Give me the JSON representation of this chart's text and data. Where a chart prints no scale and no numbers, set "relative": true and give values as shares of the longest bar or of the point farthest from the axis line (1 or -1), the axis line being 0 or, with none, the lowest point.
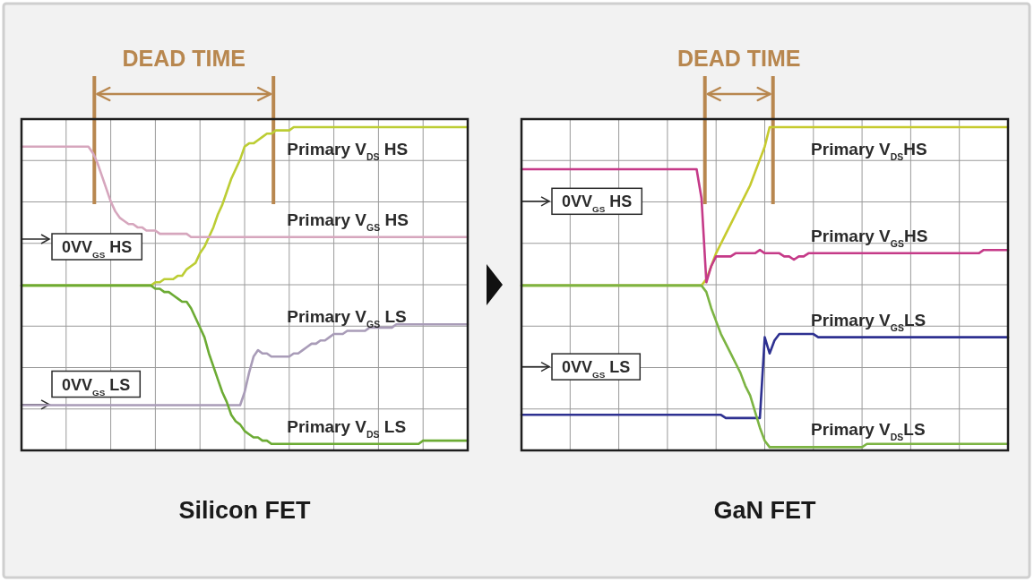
{
  "chart_data": [
    {
      "type": "line",
      "title": "Silicon FET",
      "relative": true,
      "grid": true,
      "categories": [
        null,
        null,
        null,
        null,
        null,
        null,
        null,
        null,
        null,
        null,
        null,
        null,
        null,
        null,
        null,
        null,
        null,
        null,
        null,
        null,
        null,
        null,
        null,
        null,
        null,
        null,
        null,
        null,
        null,
        null,
        null,
        null,
        null,
        null,
        null,
        null,
        null,
        null,
        null,
        null,
        null,
        null,
        null,
        null,
        null,
        null,
        null,
        null,
        null,
        null,
        null,
        null,
        null,
        null,
        null,
        null,
        null,
        null,
        null,
        null,
        null,
        null,
        null,
        null,
        null,
        null,
        null,
        null,
        null,
        null,
        null,
        null,
        null,
        null,
        null,
        null,
        null,
        null,
        null,
        null,
        null,
        null,
        null,
        null,
        null,
        null,
        null,
        null,
        null,
        null,
        null,
        null,
        null,
        null,
        null,
        null,
        null,
        null,
        null,
        null,
        null
      ],
      "series": [
        {
          "name": "Primary V$_{DS}$ HS",
          "color": "#bccd34",
          "values": [
            0.51,
            0.51,
            0.51,
            0.51,
            0.51,
            0.51,
            0.51,
            0.51,
            0.51,
            0.51,
            0.51,
            0.51,
            0.51,
            0.51,
            0.51,
            0.51,
            0.51,
            0.51,
            0.51,
            0.51,
            0.51,
            0.51,
            0.51,
            0.51,
            0.51,
            0.51,
            0.51,
            0.51,
            0.51,
            0.51,
            0.52,
            0.52,
            0.53,
            0.53,
            0.53,
            0.54,
            0.54,
            0.56,
            0.57,
            0.58,
            0.61,
            0.63,
            0.66,
            0.69,
            0.73,
            0.76,
            0.8,
            0.84,
            0.87,
            0.9,
            0.94,
            0.95,
            0.95,
            0.96,
            0.97,
            0.98,
            0.98,
            0.99,
            0.99,
            0.99,
            0.99,
            1,
            1,
            1,
            1,
            1,
            1,
            1,
            1,
            1,
            1,
            1,
            1,
            1,
            1,
            1,
            1,
            1,
            1,
            1,
            1,
            1,
            1,
            1,
            1,
            1,
            1,
            1,
            1,
            1,
            1,
            1,
            1,
            1,
            1,
            1,
            1,
            1,
            1,
            1,
            1
          ]
        },
        {
          "name": "Primary V$_{GS}$ HS",
          "color": "#d6a6bd",
          "values": [
            0.94,
            0.94,
            0.94,
            0.94,
            0.94,
            0.94,
            0.94,
            0.94,
            0.94,
            0.94,
            0.94,
            0.94,
            0.94,
            0.94,
            0.94,
            0.94,
            0.92,
            0.89,
            0.85,
            0.81,
            0.77,
            0.74,
            0.72,
            0.71,
            0.7,
            0.7,
            0.69,
            0.69,
            0.68,
            0.68,
            0.68,
            0.67,
            0.67,
            0.67,
            0.67,
            0.67,
            0.67,
            0.67,
            0.66,
            0.66,
            0.66,
            0.66,
            0.66,
            0.66,
            0.66,
            0.66,
            0.66,
            0.66,
            0.66,
            0.66,
            0.66,
            0.66,
            0.66,
            0.66,
            0.66,
            0.66,
            0.66,
            0.66,
            0.66,
            0.66,
            0.66,
            0.66,
            0.66,
            0.66,
            0.66,
            0.66,
            0.66,
            0.66,
            0.66,
            0.66,
            0.66,
            0.66,
            0.66,
            0.66,
            0.66,
            0.66,
            0.66,
            0.66,
            0.66,
            0.66,
            0.66,
            0.66,
            0.66,
            0.66,
            0.66,
            0.66,
            0.66,
            0.66,
            0.66,
            0.66,
            0.66,
            0.66,
            0.66,
            0.66,
            0.66,
            0.66,
            0.66,
            0.66,
            0.66,
            0.66,
            0.66
          ]
        },
        {
          "name": "Primary V$_{GS}$ LS",
          "color": "#a99cb8",
          "values": [
            0.14,
            0.14,
            0.14,
            0.14,
            0.14,
            0.14,
            0.14,
            0.14,
            0.14,
            0.14,
            0.14,
            0.14,
            0.14,
            0.14,
            0.14,
            0.14,
            0.14,
            0.14,
            0.14,
            0.14,
            0.14,
            0.14,
            0.14,
            0.14,
            0.14,
            0.14,
            0.14,
            0.14,
            0.14,
            0.14,
            0.14,
            0.14,
            0.14,
            0.14,
            0.14,
            0.14,
            0.14,
            0.14,
            0.14,
            0.14,
            0.14,
            0.14,
            0.14,
            0.14,
            0.14,
            0.14,
            0.14,
            0.14,
            0.14,
            0.14,
            0.18,
            0.24,
            0.29,
            0.31,
            0.3,
            0.3,
            0.29,
            0.29,
            0.29,
            0.29,
            0.29,
            0.3,
            0.3,
            0.31,
            0.32,
            0.33,
            0.33,
            0.34,
            0.34,
            0.35,
            0.36,
            0.36,
            0.36,
            0.37,
            0.37,
            0.37,
            0.37,
            0.37,
            0.38,
            0.38,
            0.38,
            0.38,
            0.38,
            0.38,
            0.39,
            0.39,
            0.39,
            0.39,
            0.39,
            0.39,
            0.39,
            0.39,
            0.39,
            0.39,
            0.39,
            0.39,
            0.39,
            0.39,
            0.39,
            0.39,
            0.39
          ]
        },
        {
          "name": "Primary V$_{DS}$ LS",
          "color": "#6cab34",
          "values": [
            0.51,
            0.51,
            0.51,
            0.51,
            0.51,
            0.51,
            0.51,
            0.51,
            0.51,
            0.51,
            0.51,
            0.51,
            0.51,
            0.51,
            0.51,
            0.51,
            0.51,
            0.51,
            0.51,
            0.51,
            0.51,
            0.51,
            0.51,
            0.51,
            0.51,
            0.51,
            0.51,
            0.51,
            0.51,
            0.51,
            0.5,
            0.5,
            0.49,
            0.49,
            0.48,
            0.47,
            0.46,
            0.46,
            0.44,
            0.41,
            0.38,
            0.35,
            0.3,
            0.26,
            0.22,
            0.18,
            0.15,
            0.11,
            0.09,
            0.08,
            0.06,
            0.05,
            0.04,
            0.04,
            0.03,
            0.03,
            0.02,
            0.02,
            0.02,
            0.02,
            0.02,
            0.02,
            0.02,
            0.02,
            0.02,
            0.02,
            0.02,
            0.02,
            0.02,
            0.02,
            0.02,
            0.02,
            0.02,
            0.02,
            0.02,
            0.02,
            0.02,
            0.02,
            0.02,
            0.02,
            0.02,
            0.02,
            0.02,
            0.02,
            0.02,
            0.02,
            0.02,
            0.02,
            0.02,
            0.02,
            0.03,
            0.03,
            0.03,
            0.03,
            0.03,
            0.03,
            0.03,
            0.03,
            0.03,
            0.03,
            0.03
          ]
        }
      ],
      "annotations": [
        "DEAD TIME",
        "0VV$_{GS}$ HS",
        "0VV$_{GS}$ LS"
      ]
    },
    {
      "type": "line",
      "title": "GaN FET",
      "relative": true,
      "grid": true,
      "categories": [
        null,
        null,
        null,
        null,
        null,
        null,
        null,
        null,
        null,
        null,
        null,
        null,
        null,
        null,
        null,
        null,
        null,
        null,
        null,
        null,
        null,
        null,
        null,
        null,
        null,
        null,
        null,
        null,
        null,
        null,
        null,
        null,
        null,
        null,
        null,
        null,
        null,
        null,
        null,
        null,
        null,
        null,
        null,
        null,
        null,
        null,
        null,
        null,
        null,
        null,
        null,
        null,
        null,
        null,
        null,
        null,
        null,
        null,
        null,
        null,
        null,
        null,
        null,
        null,
        null,
        null,
        null,
        null,
        null,
        null,
        null,
        null,
        null,
        null,
        null,
        null,
        null,
        null,
        null,
        null,
        null,
        null,
        null,
        null,
        null,
        null,
        null,
        null,
        null,
        null,
        null,
        null,
        null,
        null,
        null,
        null,
        null,
        null,
        null,
        null,
        null
      ],
      "series": [
        {
          "name": "Primary V$_{DS}$HS",
          "color": "#c6ca2e",
          "values": [
            0.51,
            0.51,
            0.51,
            0.51,
            0.51,
            0.51,
            0.51,
            0.51,
            0.51,
            0.51,
            0.51,
            0.51,
            0.51,
            0.51,
            0.51,
            0.51,
            0.51,
            0.51,
            0.51,
            0.51,
            0.51,
            0.51,
            0.51,
            0.51,
            0.51,
            0.51,
            0.51,
            0.51,
            0.51,
            0.51,
            0.51,
            0.51,
            0.51,
            0.51,
            0.51,
            0.51,
            0.51,
            0.51,
            0.53,
            0.57,
            0.61,
            0.64,
            0.67,
            0.7,
            0.73,
            0.76,
            0.79,
            0.82,
            0.86,
            0.9,
            0.94,
            1,
            1,
            1,
            1,
            1,
            1,
            1,
            1,
            1,
            1,
            1,
            1,
            1,
            1,
            1,
            1,
            1,
            1,
            1,
            1,
            1,
            1,
            1,
            1,
            1,
            1,
            1,
            1,
            1,
            1,
            1,
            1,
            1,
            1,
            1,
            1,
            1,
            1,
            1,
            1,
            1,
            1,
            1,
            1,
            1,
            1,
            1,
            1,
            1,
            1
          ]
        },
        {
          "name": "Primary V$_{GS}$HS",
          "color": "#c53a88",
          "values": [
            0.87,
            0.87,
            0.87,
            0.87,
            0.87,
            0.87,
            0.87,
            0.87,
            0.87,
            0.87,
            0.87,
            0.87,
            0.87,
            0.87,
            0.87,
            0.87,
            0.87,
            0.87,
            0.87,
            0.87,
            0.87,
            0.87,
            0.87,
            0.87,
            0.87,
            0.87,
            0.87,
            0.87,
            0.87,
            0.87,
            0.87,
            0.87,
            0.87,
            0.87,
            0.87,
            0.87,
            0.87,
            0.78,
            0.52,
            0.57,
            0.6,
            0.6,
            0.6,
            0.6,
            0.61,
            0.61,
            0.61,
            0.61,
            0.61,
            0.62,
            0.61,
            0.61,
            0.61,
            0.61,
            0.6,
            0.6,
            0.59,
            0.6,
            0.6,
            0.61,
            0.61,
            0.61,
            0.61,
            0.61,
            0.61,
            0.61,
            0.61,
            0.61,
            0.61,
            0.61,
            0.61,
            0.61,
            0.61,
            0.61,
            0.61,
            0.61,
            0.61,
            0.61,
            0.61,
            0.61,
            0.61,
            0.61,
            0.61,
            0.61,
            0.61,
            0.61,
            0.61,
            0.61,
            0.61,
            0.61,
            0.61,
            0.61,
            0.61,
            0.61,
            0.61,
            0.62,
            0.62,
            0.62,
            0.62,
            0.62,
            0.62
          ]
        },
        {
          "name": "Primary V$_{GS}$LS",
          "color": "#2e3191",
          "values": [
            0.11,
            0.11,
            0.11,
            0.11,
            0.11,
            0.11,
            0.11,
            0.11,
            0.11,
            0.11,
            0.11,
            0.11,
            0.11,
            0.11,
            0.11,
            0.11,
            0.11,
            0.11,
            0.11,
            0.11,
            0.11,
            0.11,
            0.11,
            0.11,
            0.11,
            0.11,
            0.11,
            0.11,
            0.11,
            0.11,
            0.11,
            0.11,
            0.11,
            0.11,
            0.11,
            0.11,
            0.11,
            0.11,
            0.11,
            0.11,
            0.11,
            0.11,
            0.1,
            0.1,
            0.1,
            0.1,
            0.1,
            0.1,
            0.1,
            0.1,
            0.35,
            0.3,
            0.34,
            0.36,
            0.36,
            0.36,
            0.36,
            0.36,
            0.36,
            0.36,
            0.36,
            0.35,
            0.35,
            0.35,
            0.35,
            0.35,
            0.35,
            0.35,
            0.35,
            0.35,
            0.35,
            0.35,
            0.35,
            0.35,
            0.35,
            0.35,
            0.35,
            0.35,
            0.35,
            0.35,
            0.35,
            0.35,
            0.35,
            0.35,
            0.35,
            0.35,
            0.35,
            0.35,
            0.35,
            0.35,
            0.35,
            0.35,
            0.35,
            0.35,
            0.35,
            0.35,
            0.35,
            0.35,
            0.35,
            0.35,
            0.35
          ]
        },
        {
          "name": "Primary V$_{DS}$LS",
          "color": "#7cb443",
          "values": [
            0.51,
            0.51,
            0.51,
            0.51,
            0.51,
            0.51,
            0.51,
            0.51,
            0.51,
            0.51,
            0.51,
            0.51,
            0.51,
            0.51,
            0.51,
            0.51,
            0.51,
            0.51,
            0.51,
            0.51,
            0.51,
            0.51,
            0.51,
            0.51,
            0.51,
            0.51,
            0.51,
            0.51,
            0.51,
            0.51,
            0.51,
            0.51,
            0.51,
            0.51,
            0.51,
            0.51,
            0.51,
            0.51,
            0.49,
            0.44,
            0.4,
            0.36,
            0.33,
            0.3,
            0.27,
            0.24,
            0.2,
            0.17,
            0.12,
            0.07,
            0.03,
            0.01,
            0.01,
            0.01,
            0.01,
            0.01,
            0.01,
            0.01,
            0.01,
            0.01,
            0.01,
            0.01,
            0.01,
            0.01,
            0.01,
            0.01,
            0.01,
            0.01,
            0.01,
            0.01,
            0.01,
            0.02,
            0.02,
            0.02,
            0.02,
            0.02,
            0.02,
            0.02,
            0.02,
            0.02,
            0.02,
            0.02,
            0.02,
            0.02,
            0.02,
            0.02,
            0.02,
            0.02,
            0.02,
            0.02,
            0.02,
            0.02,
            0.02,
            0.02,
            0.02,
            0.02,
            0.02,
            0.02,
            0.02,
            0.02,
            0.02
          ]
        }
      ],
      "annotations": [
        "DEAD TIME",
        "0VV$_{GS}$ HS",
        "0VV$_{GS}$ LS"
      ]
    }
  ]
}
